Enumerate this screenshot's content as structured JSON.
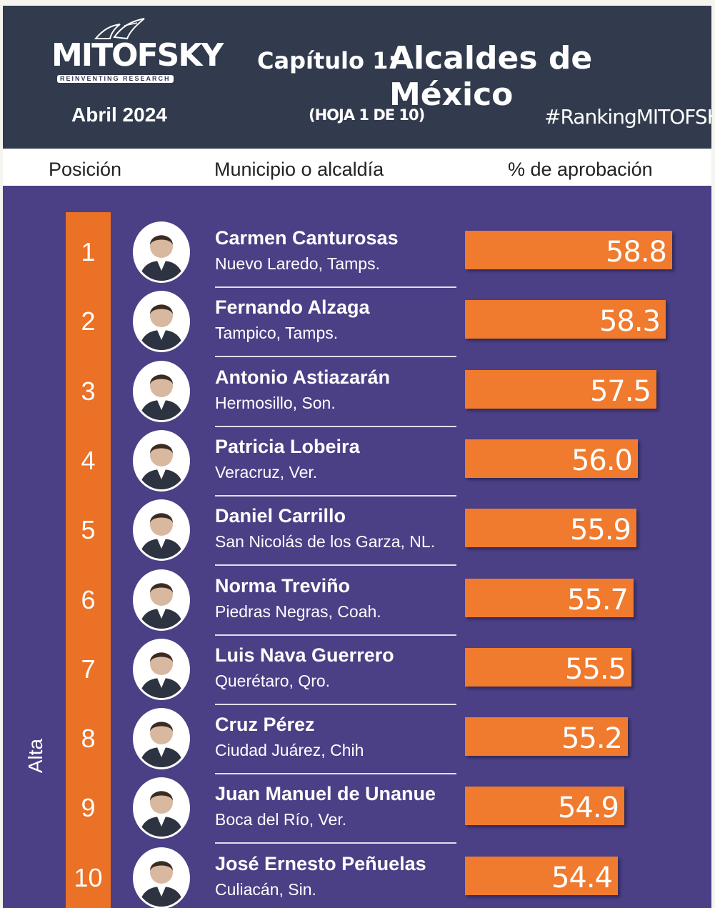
{
  "header": {
    "logo_text": "MITOFSKY",
    "logo_subtitle": "REINVENTING RESEARCH",
    "chapter": "Capítulo 1:",
    "title": "Alcaldes de México",
    "date": "Abril  2024",
    "sheet": "(HOJA 1 DE 10)",
    "hashtag": "#RankingMITOFSKY"
  },
  "columns": {
    "position": "Posición",
    "municipality": "Municipio o alcaldía",
    "approval": "% de aprobación"
  },
  "side_label": "Alta",
  "colors": {
    "background": "#4b3f86",
    "header": "#323b4d",
    "accent": "#ea7126",
    "bar": "#f07a2d"
  },
  "chart_data": {
    "type": "bar",
    "orientation": "horizontal",
    "ylabel": "% de aprobación",
    "categories": [
      "Carmen Canturosas",
      "Fernando Alzaga",
      "Antonio Astiazarán",
      "Patricia Lobeira",
      "Daniel Carrillo",
      "Norma Treviño",
      "Luis Nava Guerrero",
      "Cruz Pérez",
      "Juan Manuel de Unanue",
      "José Ernesto Peñuelas"
    ],
    "values": [
      58.8,
      58.3,
      57.5,
      56.0,
      55.9,
      55.7,
      55.5,
      55.2,
      54.9,
      54.4
    ],
    "value_labels": [
      "58.8",
      "58.3",
      "57.5",
      "56.0",
      "55.9",
      "55.7",
      "55.5",
      "55.2",
      "54.9",
      "54.4"
    ]
  },
  "rows": [
    {
      "pos": "1",
      "name": "Carmen Canturosas",
      "place": "Nuevo Laredo, Tamps."
    },
    {
      "pos": "2",
      "name": "Fernando Alzaga",
      "place": "Tampico, Tamps."
    },
    {
      "pos": "3",
      "name": "Antonio Astiazarán",
      "place": "Hermosillo, Son."
    },
    {
      "pos": "4",
      "name": "Patricia Lobeira",
      "place": "Veracruz, Ver."
    },
    {
      "pos": "5",
      "name": "Daniel Carrillo",
      "place": "San Nicolás de los Garza, NL."
    },
    {
      "pos": "6",
      "name": "Norma Treviño",
      "place": "Piedras Negras, Coah."
    },
    {
      "pos": "7",
      "name": "Luis Nava Guerrero",
      "place": "Querétaro, Qro."
    },
    {
      "pos": "8",
      "name": "Cruz Pérez",
      "place": "Ciudad Juárez, Chih"
    },
    {
      "pos": "9",
      "name": "Juan Manuel de Unanue",
      "place": "Boca del Río, Ver."
    },
    {
      "pos": "10",
      "name": "José Ernesto Peñuelas",
      "place": "Culiacán, Sin."
    }
  ]
}
